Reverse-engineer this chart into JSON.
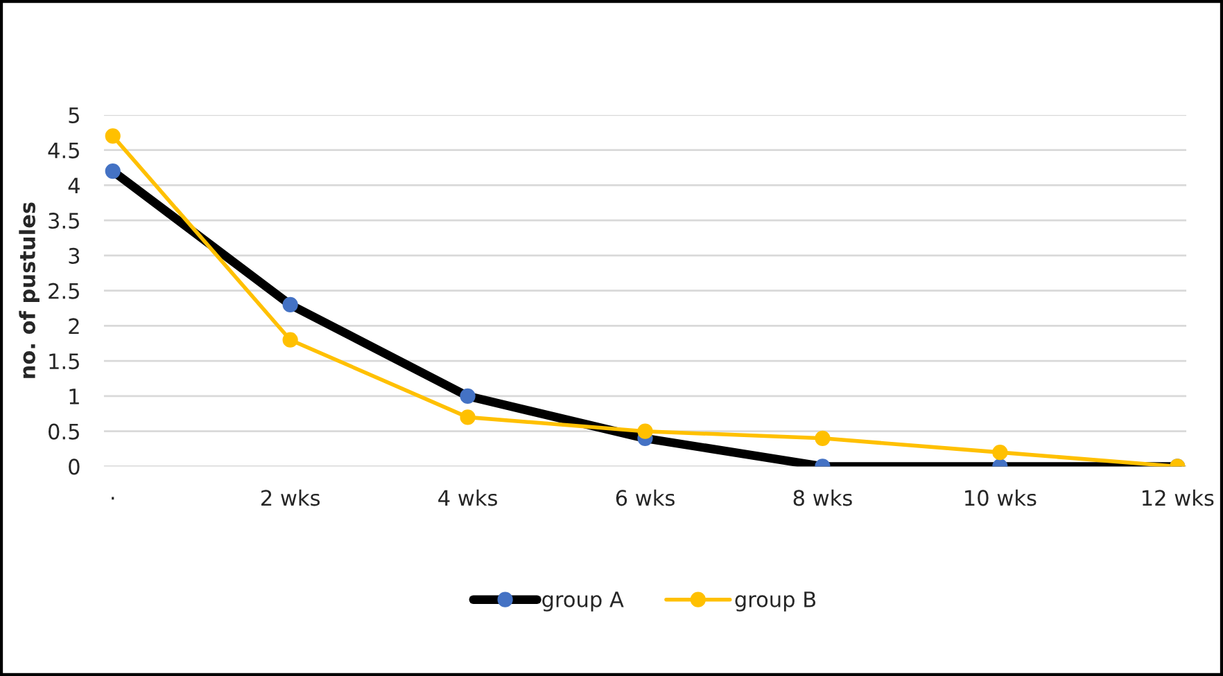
{
  "chart_data": {
    "type": "line",
    "ylabel": "no. of pustules",
    "categories": [
      "·",
      "2 wks",
      "4 wks",
      "6 wks",
      "8 wks",
      "10 wks",
      "12 wks"
    ],
    "series": [
      {
        "name": "group A",
        "color": "#000000",
        "colors": [
          "#4472c4",
          "#4472c4",
          "#4472c4",
          "#4472c4",
          "#4472c4",
          "#4472c4",
          "#4472c4"
        ],
        "values": [
          4.2,
          2.3,
          1.0,
          0.4,
          0,
          0,
          0
        ]
      },
      {
        "name": "group B",
        "color": "#ffc000",
        "values": [
          4.7,
          1.8,
          0.7,
          0.5,
          0.4,
          0.2,
          0
        ]
      }
    ],
    "ylim": [
      0,
      5
    ],
    "yticks": [
      0,
      0.5,
      1,
      1.5,
      2,
      2.5,
      3,
      3.5,
      4,
      4.5,
      5
    ],
    "grid": "y",
    "legend": "bottom",
    "marker": "circle",
    "line_style": "solid"
  }
}
